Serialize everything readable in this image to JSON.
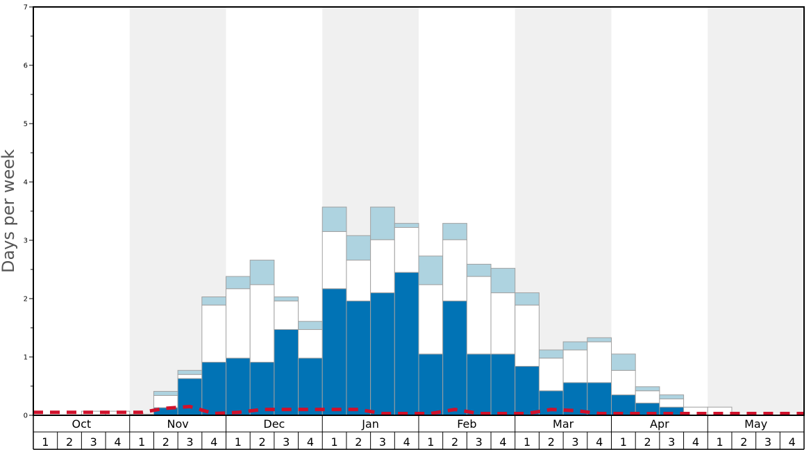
{
  "chart_data": {
    "type": "bar",
    "ylabel": "Days per week",
    "ylim": [
      0,
      7
    ],
    "yticks": [
      "0",
      "1",
      "2",
      "3",
      "4",
      "5",
      "6",
      "7"
    ],
    "months": [
      "Oct",
      "Nov",
      "Dec",
      "Jan",
      "Feb",
      "Mar",
      "Apr",
      "May"
    ],
    "weeks": [
      "1",
      "2",
      "3",
      "4"
    ],
    "shaded_months": [
      "Nov",
      "Jan",
      "Mar",
      "May"
    ],
    "colors": {
      "dark": "#0173b5",
      "white": "#ffffff",
      "light": "#aed3e0",
      "line": "#d0112b",
      "band": "#f0f0f0"
    },
    "series": [
      {
        "key": "dark",
        "values": [
          0,
          0,
          0,
          0,
          0,
          0.13,
          0.63,
          0.91,
          0.98,
          0.91,
          1.47,
          0.98,
          2.17,
          1.96,
          2.1,
          2.45,
          1.05,
          1.96,
          1.05,
          1.05,
          0.84,
          0.42,
          0.56,
          0.56,
          0.35,
          0.21,
          0.14,
          0,
          0,
          0,
          0,
          0
        ]
      },
      {
        "key": "white",
        "values": [
          0,
          0,
          0.07,
          0.07,
          0.02,
          0.21,
          0.07,
          0.98,
          1.19,
          1.33,
          0.49,
          0.49,
          0.98,
          0.7,
          0.91,
          0.77,
          1.19,
          1.05,
          1.33,
          1.05,
          1.05,
          0.56,
          0.56,
          0.7,
          0.42,
          0.21,
          0.14,
          0.14,
          0.14,
          0,
          0,
          0
        ]
      },
      {
        "key": "light",
        "values": [
          0,
          0,
          0,
          0,
          0,
          0.07,
          0.07,
          0.14,
          0.21,
          0.42,
          0.07,
          0.14,
          0.42,
          0.42,
          0.56,
          0.07,
          0.49,
          0.28,
          0.21,
          0.42,
          0.21,
          0.14,
          0.14,
          0.07,
          0.28,
          0.07,
          0.07,
          0,
          0,
          0,
          0,
          0
        ]
      }
    ],
    "line": [
      0.05,
      0.05,
      0.05,
      0.05,
      0.05,
      0.12,
      0.15,
      0.03,
      0.05,
      0.1,
      0.1,
      0.1,
      0.1,
      0.1,
      0.03,
      0.03,
      0.03,
      0.1,
      0.03,
      0.03,
      0.03,
      0.1,
      0.08,
      0.03,
      0.03,
      0.03,
      0.03,
      0.03,
      0.03,
      0.03,
      0.03,
      0.03
    ]
  }
}
